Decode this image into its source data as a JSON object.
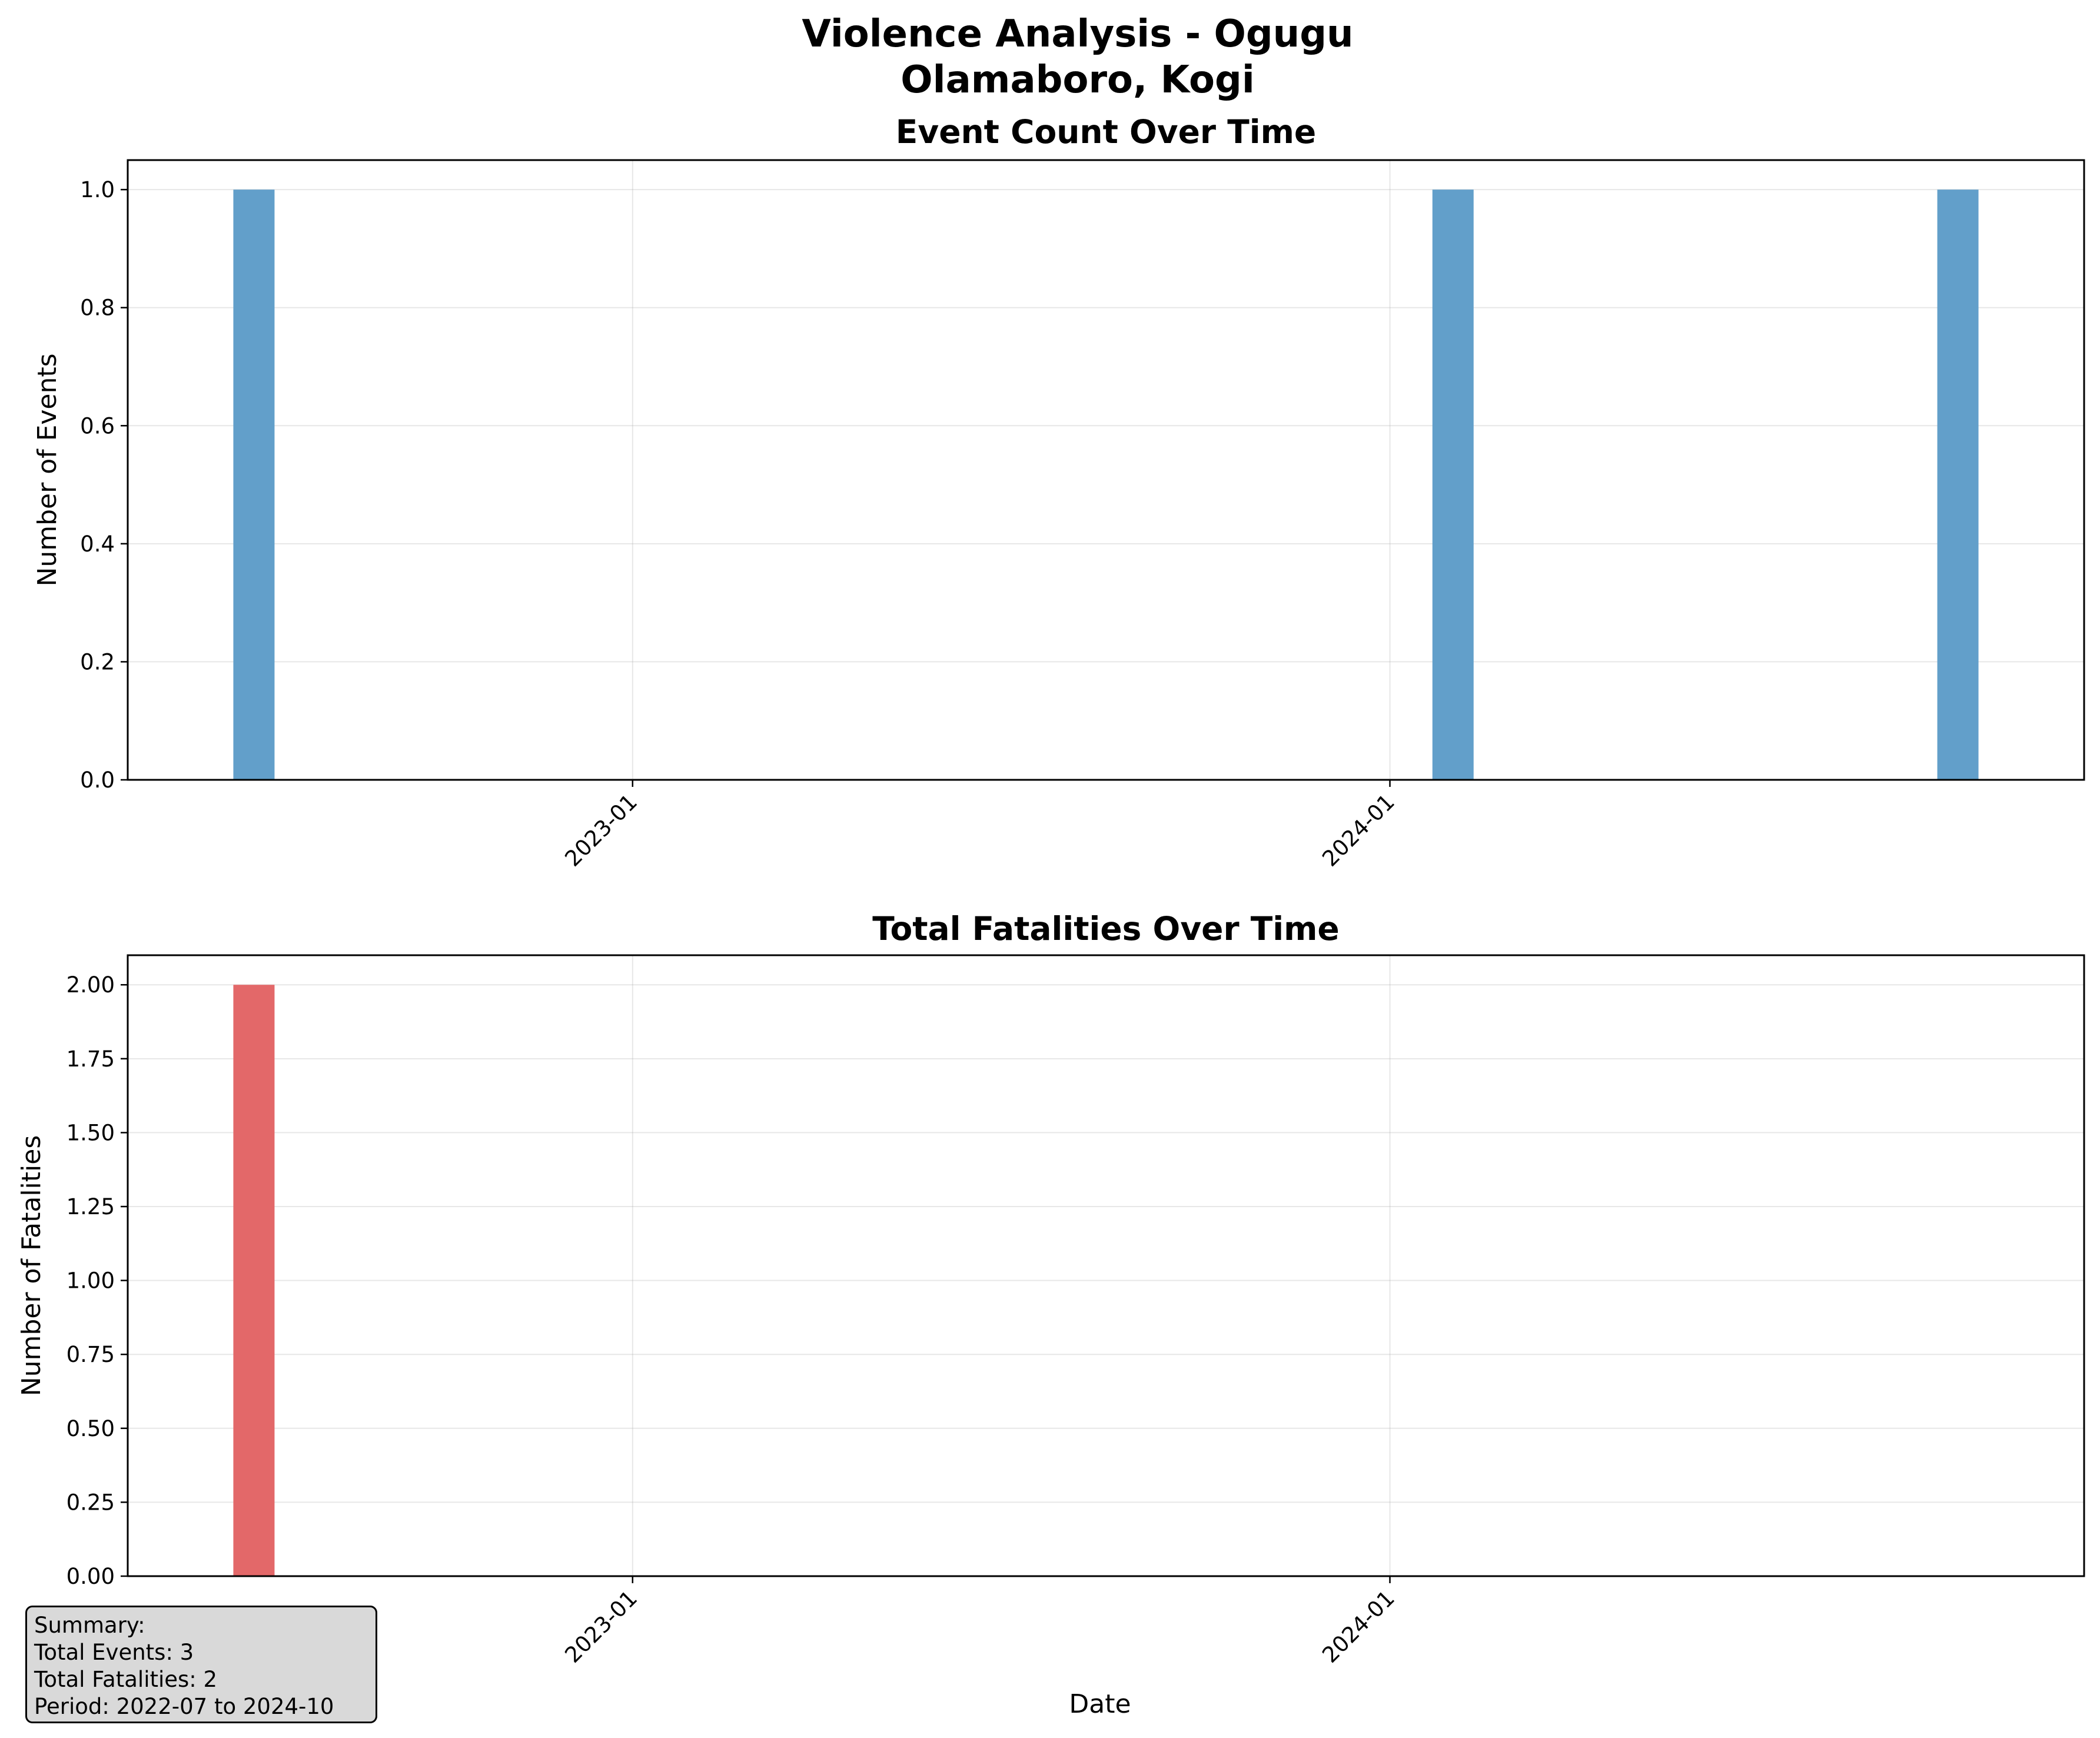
{
  "figure": {
    "title_line1": "Violence Analysis - Ogugu",
    "title_line2": "Olamaboro, Kogi"
  },
  "chart_data": [
    {
      "type": "bar",
      "title": "Event Count Over Time",
      "xlabel": "",
      "ylabel": "Number of Events",
      "x": [
        "2022-07",
        "2024-02",
        "2024-10"
      ],
      "values": [
        1,
        1,
        1
      ],
      "xlim": [
        "2022-05",
        "2024-12"
      ],
      "xticks": [
        "2023-01",
        "2024-01"
      ],
      "ylim": [
        0,
        1.05
      ],
      "yticks": [
        "0.0",
        "0.2",
        "0.4",
        "0.6",
        "0.8",
        "1.0"
      ],
      "color": "#629fca",
      "grid": true
    },
    {
      "type": "bar",
      "title": "Total Fatalities Over Time",
      "xlabel": "Date",
      "ylabel": "Number of Fatalities",
      "x": [
        "2022-07"
      ],
      "values": [
        2
      ],
      "xlim": [
        "2022-05",
        "2024-12"
      ],
      "xticks": [
        "2023-01",
        "2024-01"
      ],
      "ylim": [
        0,
        2.1
      ],
      "yticks": [
        "0.00",
        "0.25",
        "0.50",
        "0.75",
        "1.00",
        "1.25",
        "1.50",
        "1.75",
        "2.00"
      ],
      "color": "#e36869",
      "grid": true
    }
  ],
  "summary": {
    "heading": "Summary:",
    "events": "Total Events: 3",
    "fatalities": "Total Fatalities: 2",
    "period": "Period: 2022-07 to 2024-10"
  }
}
